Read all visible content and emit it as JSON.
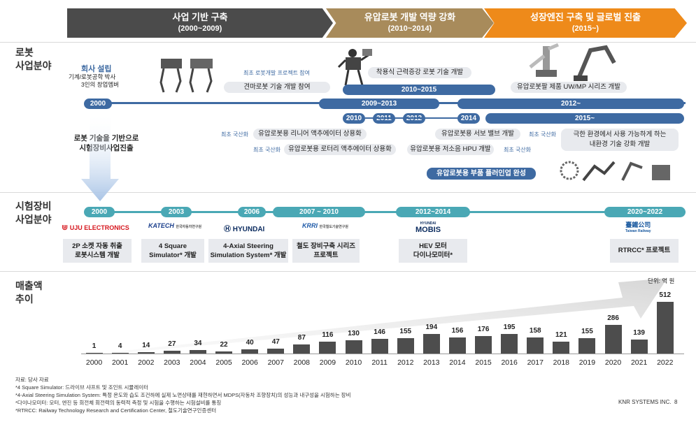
{
  "phases": [
    {
      "title": "사업 기반 구축",
      "years": "(2000~2009)",
      "color": "#4b4b4b"
    },
    {
      "title": "유압로봇 개발 역량 강화",
      "years": "(2010~2014)",
      "color": "#a88b5b"
    },
    {
      "title": "성장엔진 구축 및 글로벌 진출",
      "years": "(2015~)",
      "color": "#ee8a1a"
    }
  ],
  "sections": {
    "robot": "로봇\n사업분야",
    "test": "시험장비\n사업분야",
    "sales": "매출액\n추이"
  },
  "robot": {
    "founding_title": "회사 설립",
    "founding_sub1": "기계/로봇공학 박사",
    "founding_sub2": "3인의 창업멤버",
    "pill_2000": "2000",
    "pill_2010_2015": "2010~2015",
    "pill_2009_2013": "2009~2013",
    "pill_2012_": "2012~",
    "pill_2015_": "2015~",
    "pill_2010": "2010",
    "pill_2011": "2011",
    "pill_2012": "2012",
    "pill_2014": "2014",
    "first_participation": "최초 로봇개발 프로젝트 참여",
    "quad_robot": "견마로봇 기술 개발 참여",
    "wearable": "착용식 근력증강 로봇 기술 개발",
    "uwmp": "유압로봇팔 제품 UW/MP 시리즈 개발",
    "first_local_1": "최초 국산화",
    "linear": "유압로봇용 리니어 액추에이터 상용화",
    "first_local_2": "최초 국산화",
    "rotary": "유압로봇용 로터리 액추에이터 상용화",
    "servo": "유압로봇용 서보 밸브 개발",
    "first_local_3": "최초 국산화",
    "hpu": "유압로봇용 저소음 HPU 개발",
    "first_local_4": "최초 국산화",
    "plugin": "유압로봇용 부품 플러인업 완성",
    "extreme_1": "극한 환경에서 사용 가능하게 하는",
    "extreme_2": "내환경 기술 강화 개발",
    "transition_1": "로봇 기술을 기반으로",
    "transition_2": "시험장비사업진출"
  },
  "test": {
    "pills": [
      "2000",
      "2003",
      "2006",
      "2007 ~ 2010",
      "2012~2014",
      "2020~2022"
    ],
    "logos": [
      "UJU ELECTRONICS",
      "KATECH",
      "한국자동차연구원",
      "HYUNDAI",
      "KRRI",
      "한국철도기술연구원",
      "HYUNDAI",
      "MOBIS",
      "臺鐵公司",
      "Taiwan Railway"
    ],
    "projects": [
      {
        "l1": "2P 소켓 자동 취출",
        "l2": "로봇시스템 개발"
      },
      {
        "l1": "4 Square",
        "l2": "Simulator* 개발"
      },
      {
        "l1": "4-Axial Steering",
        "l2": "Simulation System* 개발"
      },
      {
        "l1": "철도 장비구축 시리즈",
        "l2": "프로젝트"
      },
      {
        "l1": "HEV 모터",
        "l2": "다이나모미터*"
      },
      {
        "l1": "RTRCC* 프로젝트",
        "l2": ""
      }
    ]
  },
  "chart_data": {
    "type": "bar",
    "categories": [
      "2000",
      "2001",
      "2002",
      "2003",
      "2004",
      "2005",
      "2006",
      "2007",
      "2008",
      "2009",
      "2010",
      "2011",
      "2012",
      "2013",
      "2014",
      "2015",
      "2016",
      "2017",
      "2018",
      "2019",
      "2020",
      "2021",
      "2022"
    ],
    "values": [
      1,
      4,
      14,
      27,
      34,
      22,
      40,
      47,
      87,
      116,
      130,
      146,
      155,
      194,
      156,
      176,
      195,
      158,
      121,
      155,
      286,
      139,
      512
    ],
    "unit_label": "단위: 억 원",
    "ylim": [
      0,
      512
    ]
  },
  "notes": [
    "자료: 당사 자료",
    "*4 Square Simulator: 드라이브 샤프트 및 조인트 시뮬레이터",
    "*4-Axial Steering Simulation System: 특정 온도와 습도 조건하에 실제 노면상태를 재현하면서 MDPS(자동차 조향장치)의 성능과 내구성을 시험하는 장비",
    "*다이나모미터: 모터, 엔진 등 회전체 회전력의 동력적 측정 및 시험을 수행하는 시험설비를 통칭",
    "*RTRCC: Railway Technology Research and Certification Center, 철도기술연구인증센터"
  ],
  "footer": "KNR SYSTEMS INC.  8"
}
